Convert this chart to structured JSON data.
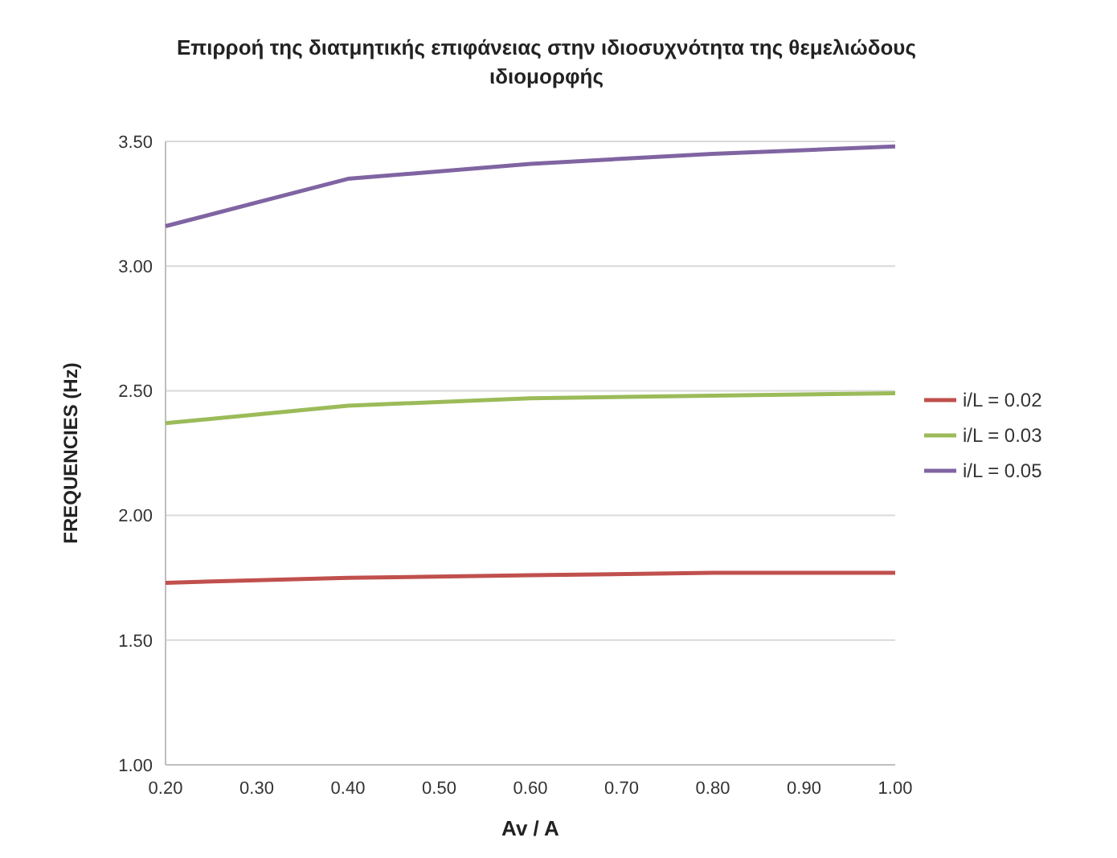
{
  "chart_data": {
    "type": "line",
    "title": "Επιρροή της διατμητικής επιφάνειας στην ιδιοσυχνότητα της θεμελιώδους ιδιομορφής",
    "xlabel": "Av / A",
    "ylabel": "FREQUENCIES (Hz)",
    "x": [
      0.2,
      0.4,
      0.6,
      0.8,
      1.0
    ],
    "series": [
      {
        "name": "i/L = 0.02",
        "color": "#c0504d",
        "values": [
          1.73,
          1.75,
          1.76,
          1.77,
          1.77
        ]
      },
      {
        "name": "i/L = 0.03",
        "color": "#9bbb59",
        "values": [
          2.37,
          2.44,
          2.47,
          2.48,
          2.49
        ]
      },
      {
        "name": "i/L = 0.05",
        "color": "#8064a2",
        "values": [
          3.16,
          3.35,
          3.41,
          3.45,
          3.48
        ]
      }
    ],
    "xlim": [
      0.2,
      1.0
    ],
    "xticks": [
      {
        "value": 0.2,
        "label": "0.20"
      },
      {
        "value": 0.3,
        "label": "0.30"
      },
      {
        "value": 0.4,
        "label": "0.40"
      },
      {
        "value": 0.5,
        "label": "0.50"
      },
      {
        "value": 0.6,
        "label": "0.60"
      },
      {
        "value": 0.7,
        "label": "0.70"
      },
      {
        "value": 0.8,
        "label": "0.80"
      },
      {
        "value": 0.9,
        "label": "0.90"
      },
      {
        "value": 1.0,
        "label": "1.00"
      }
    ],
    "ylim": [
      1.0,
      3.5
    ],
    "yticks": [
      {
        "value": 1.0,
        "label": "1.00"
      },
      {
        "value": 1.5,
        "label": "1.50"
      },
      {
        "value": 2.0,
        "label": "2.00"
      },
      {
        "value": 2.5,
        "label": "2.50"
      },
      {
        "value": 3.0,
        "label": "3.00"
      },
      {
        "value": 3.5,
        "label": "3.50"
      }
    ],
    "grid": "y",
    "legend": "right",
    "marker": "none",
    "line_style": "solid"
  }
}
